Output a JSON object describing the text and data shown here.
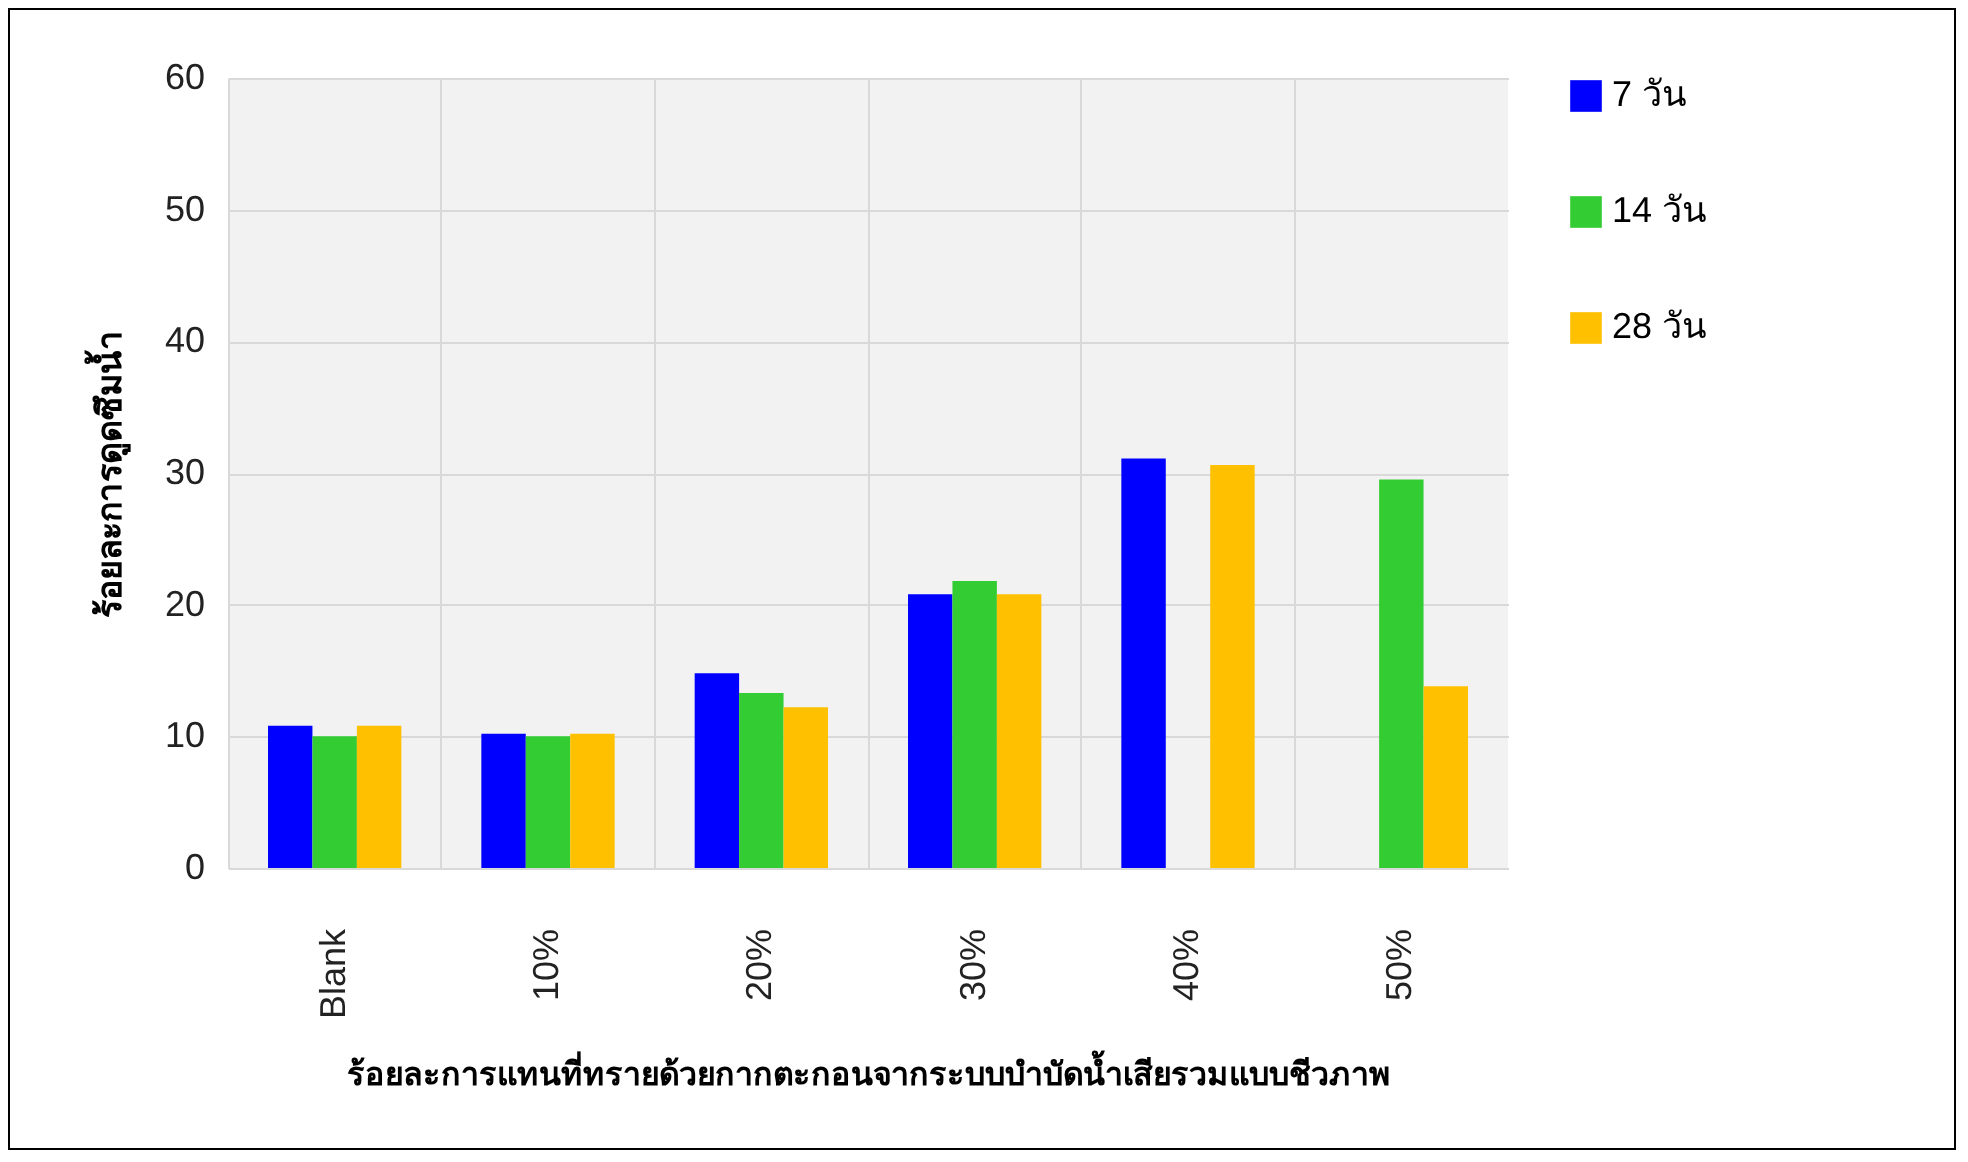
{
  "chart_data": {
    "type": "bar",
    "xlabel": "ร้อยละการแทนที่ทรายด้วยกากตะกอนจากระบบบำบัดน้ำเสียรวมแบบชีวภาพ",
    "ylabel": "ร้อยละการดูดซึมน้ำ",
    "categories": [
      "Blank",
      "10%",
      "20%",
      "30%",
      "40%",
      "50%"
    ],
    "series": [
      {
        "name": "7 วัน",
        "color": "#0000ff",
        "values": [
          10.8,
          10.2,
          14.8,
          20.8,
          31.1,
          null
        ]
      },
      {
        "name": "14 วัน",
        "color": "#33cc33",
        "values": [
          10,
          10,
          13.3,
          21.8,
          null,
          29.5
        ]
      },
      {
        "name": "28 วัน",
        "color": "#ffc000",
        "values": [
          10.8,
          10.2,
          12.2,
          20.8,
          30.6,
          13.8
        ]
      }
    ],
    "ylim": [
      0,
      60
    ],
    "yticks": [
      0,
      10,
      20,
      30,
      40,
      50,
      60
    ],
    "grid": true,
    "legend": "right"
  }
}
